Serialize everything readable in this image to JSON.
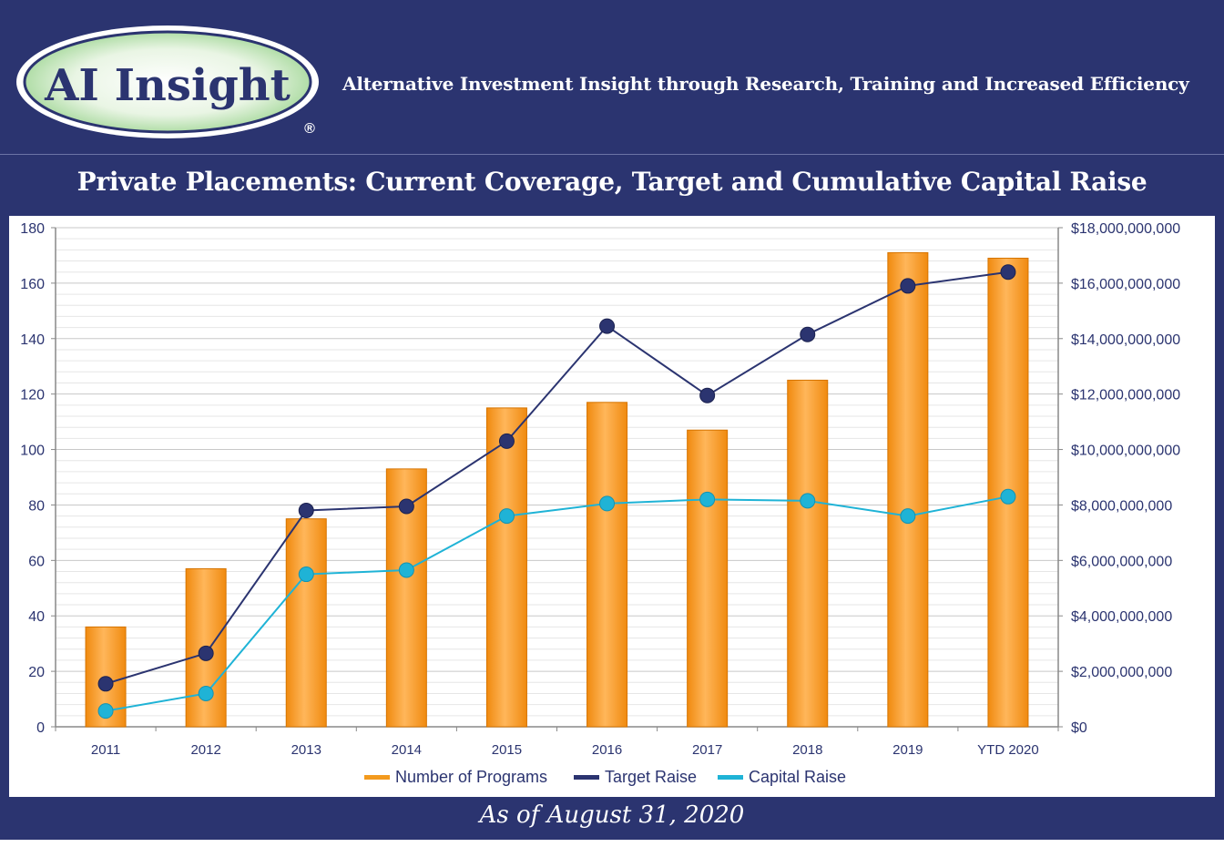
{
  "header": {
    "logo_text": "AI Insight",
    "logo_mark": "®",
    "tagline": "Alternative Investment Insight through Research, Training and Increased Efficiency"
  },
  "title": "Private Placements: Current Coverage, Target and Cumulative Capital Raise",
  "footer": "As of August 31, 2020",
  "colors": {
    "background": "#2b3470",
    "bar": "#f39a1e",
    "target_line": "#2b3470",
    "capital_line": "#1fb3d6",
    "logo_green": "#a8d89e"
  },
  "chart_data": {
    "type": "bar",
    "categories": [
      "2011",
      "2012",
      "2013",
      "2014",
      "2015",
      "2016",
      "2017",
      "2018",
      "2019",
      "YTD 2020"
    ],
    "left_axis": {
      "ylim": [
        0,
        180
      ],
      "ticks": [
        0,
        20,
        40,
        60,
        80,
        100,
        120,
        140,
        160,
        180
      ],
      "tick_labels": [
        "0",
        "20",
        "40",
        "60",
        "80",
        "100",
        "120",
        "140",
        "160",
        "180"
      ]
    },
    "right_axis": {
      "ylim": [
        0,
        18000000000
      ],
      "ticks": [
        0,
        2000000000,
        4000000000,
        6000000000,
        8000000000,
        10000000000,
        12000000000,
        14000000000,
        16000000000,
        18000000000
      ],
      "tick_labels": [
        "$0",
        "$2,000,000,000",
        "$4,000,000,000",
        "$6,000,000,000",
        "$8,000,000,000",
        "$10,000,000,000",
        "$12,000,000,000",
        "$14,000,000,000",
        "$16,000,000,000",
        "$18,000,000,000"
      ]
    },
    "grid": true,
    "legend_position": "bottom",
    "series": [
      {
        "name": "Number of Programs",
        "kind": "bar",
        "axis": "left",
        "color": "#f39a1e",
        "values": [
          36,
          57,
          75,
          93,
          115,
          117,
          107,
          125,
          171,
          169
        ]
      },
      {
        "name": "Target Raise",
        "kind": "line",
        "axis": "right",
        "color": "#2b3470",
        "values": [
          1550000000,
          2650000000,
          7800000000,
          7950000000,
          10300000000,
          14450000000,
          11950000000,
          14150000000,
          15900000000,
          16400000000
        ]
      },
      {
        "name": "Capital Raise",
        "kind": "line",
        "axis": "right",
        "color": "#1fb3d6",
        "values": [
          570000000,
          1200000000,
          5500000000,
          5650000000,
          7600000000,
          8050000000,
          8200000000,
          8150000000,
          7600000000,
          8300000000
        ]
      }
    ]
  }
}
